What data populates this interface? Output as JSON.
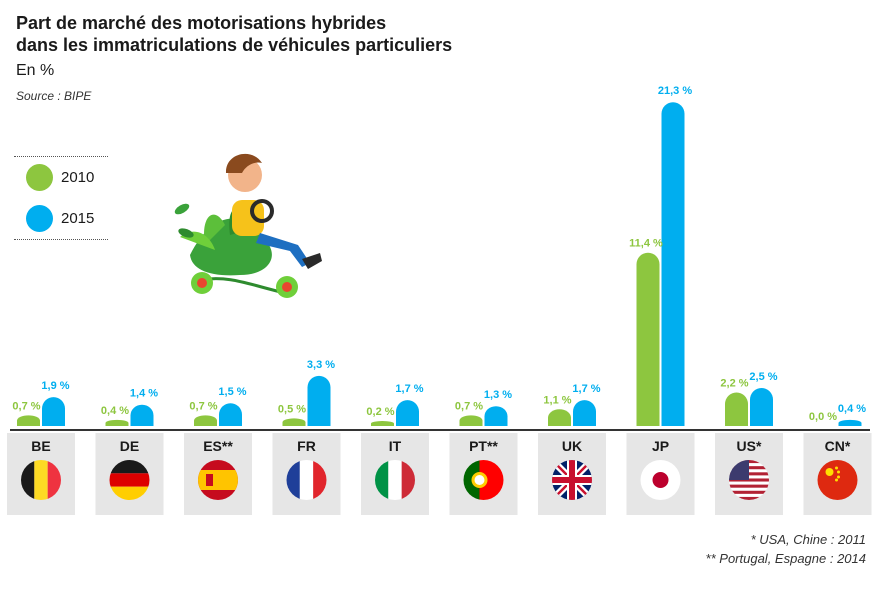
{
  "title_line1": "Part de marché des motorisations hybrides",
  "title_line2": "dans les immatriculations de véhicules particuliers",
  "subtitle": "En %",
  "source": "Source : BIPE",
  "notes": [
    "* USA, Chine : 2011",
    "** Portugal, Espagne : 2014"
  ],
  "colors": {
    "s2010": "#8dc63f",
    "s2015": "#00aeef",
    "panel": "#e6e6e6",
    "axis": "#333333",
    "label2010": "#8dc63f",
    "label2015": "#00aeef"
  },
  "chart_data": {
    "type": "bar",
    "categories": [
      "BE",
      "DE",
      "ES**",
      "FR",
      "IT",
      "PT**",
      "UK",
      "JP",
      "US*",
      "CN*"
    ],
    "country_flags": [
      "belgium-flag",
      "germany-flag",
      "spain-flag",
      "france-flag",
      "italy-flag",
      "portugal-flag",
      "uk-flag",
      "japan-flag",
      "usa-flag",
      "china-flag"
    ],
    "series": [
      {
        "name": "2010",
        "values": [
          0.7,
          0.4,
          0.7,
          0.5,
          0.2,
          0.7,
          1.1,
          11.4,
          2.2,
          0.0
        ],
        "labels": [
          "0,7 %",
          "0,4 %",
          "0,7 %",
          "0,5 %",
          "0,2 %",
          "0,7 %",
          "1,1 %",
          "11,4 %",
          "2,2 %",
          "0,0 %"
        ]
      },
      {
        "name": "2015",
        "values": [
          1.9,
          1.4,
          1.5,
          3.3,
          1.7,
          1.3,
          1.7,
          21.3,
          2.5,
          0.4
        ],
        "labels": [
          "1,9 %",
          "1,4 %",
          "1,5 %",
          "3,3 %",
          "1,7 %",
          "1,3 %",
          "1,7 %",
          "21,3 %",
          "2,5 %",
          "0,4 %"
        ]
      }
    ],
    "legend": [
      "2010",
      "2015"
    ],
    "legend_position": "left"
  }
}
